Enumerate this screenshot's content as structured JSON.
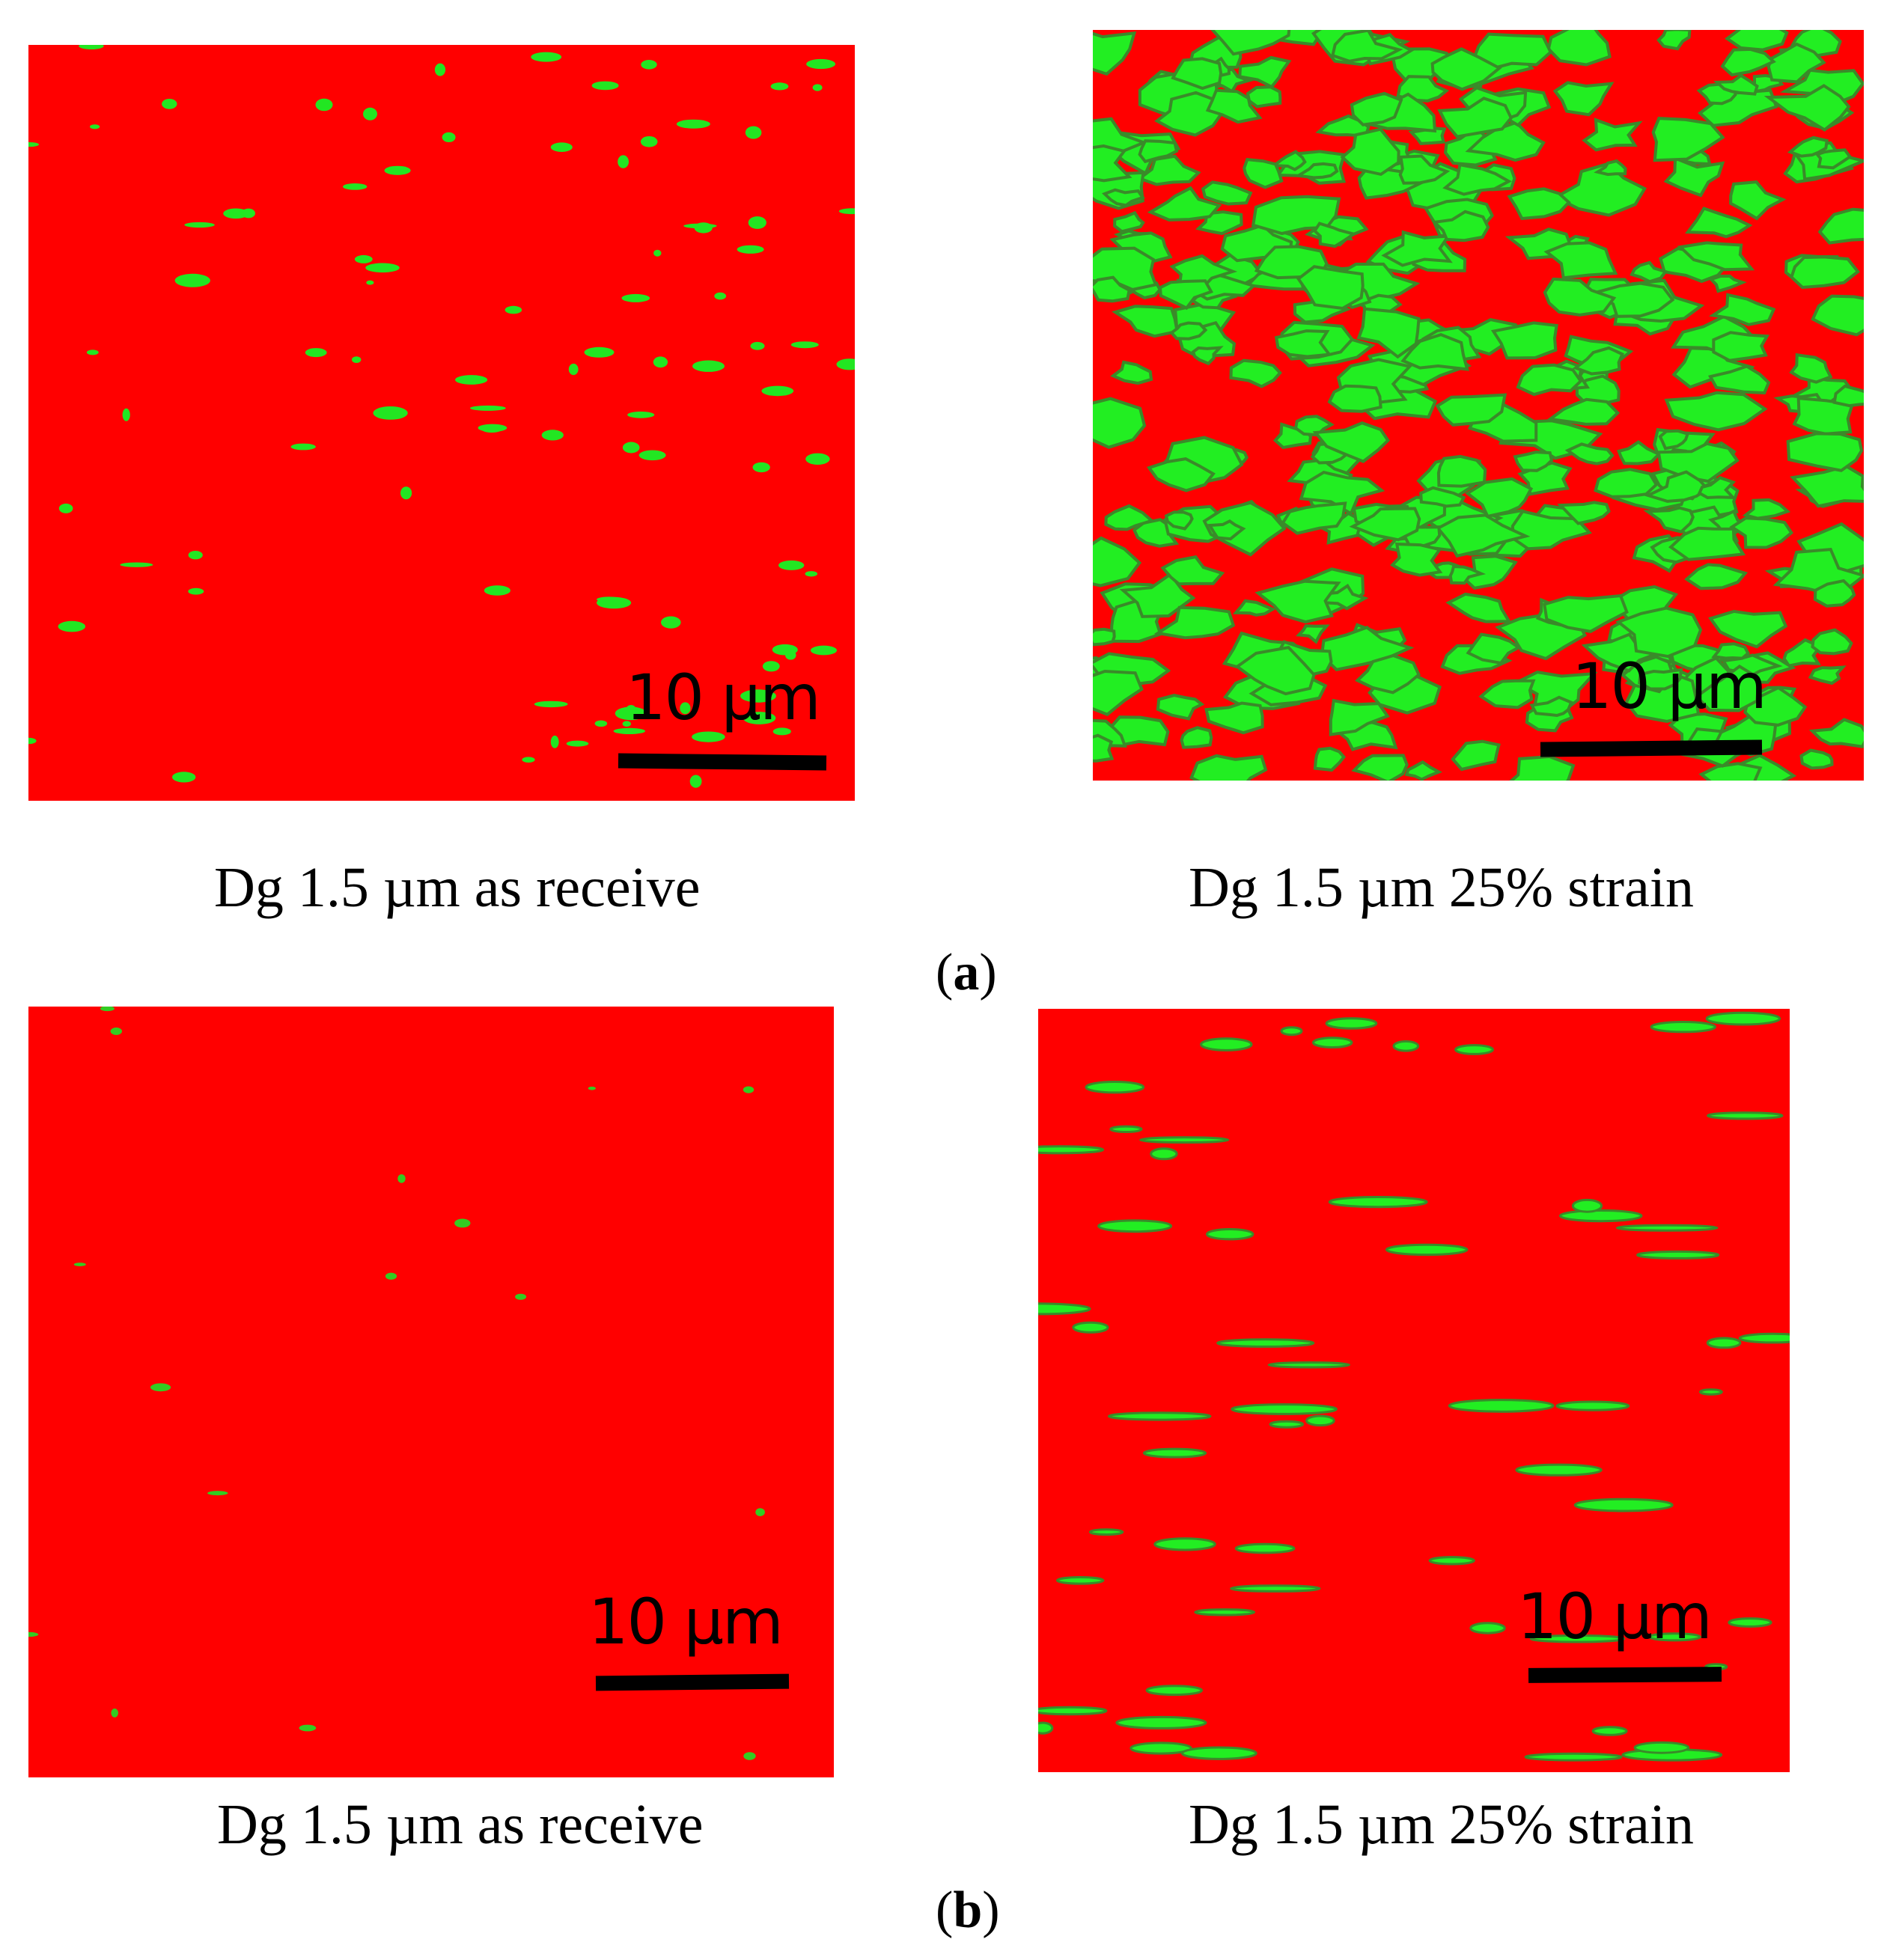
{
  "figure": {
    "panels_a": [
      {
        "caption": "Dg 1.5 µm as receive",
        "scale_label": "10 µm"
      },
      {
        "caption": "Dg 1.5 µm 25% strain",
        "scale_label": "10 µm"
      }
    ],
    "panels_b": [
      {
        "caption": "Dg 1.5 µm as receive",
        "scale_label": "10 µm"
      },
      {
        "caption": "Dg 1.5 µm 25% strain",
        "scale_label": "10 µm"
      }
    ],
    "label_a": {
      "open": "(",
      "letter": "a",
      "close": ")"
    },
    "label_b": {
      "open": "(",
      "letter": "b",
      "close": ")"
    }
  },
  "colors": {
    "phase_red": "#ff0000",
    "phase_green": "#00ff00"
  }
}
